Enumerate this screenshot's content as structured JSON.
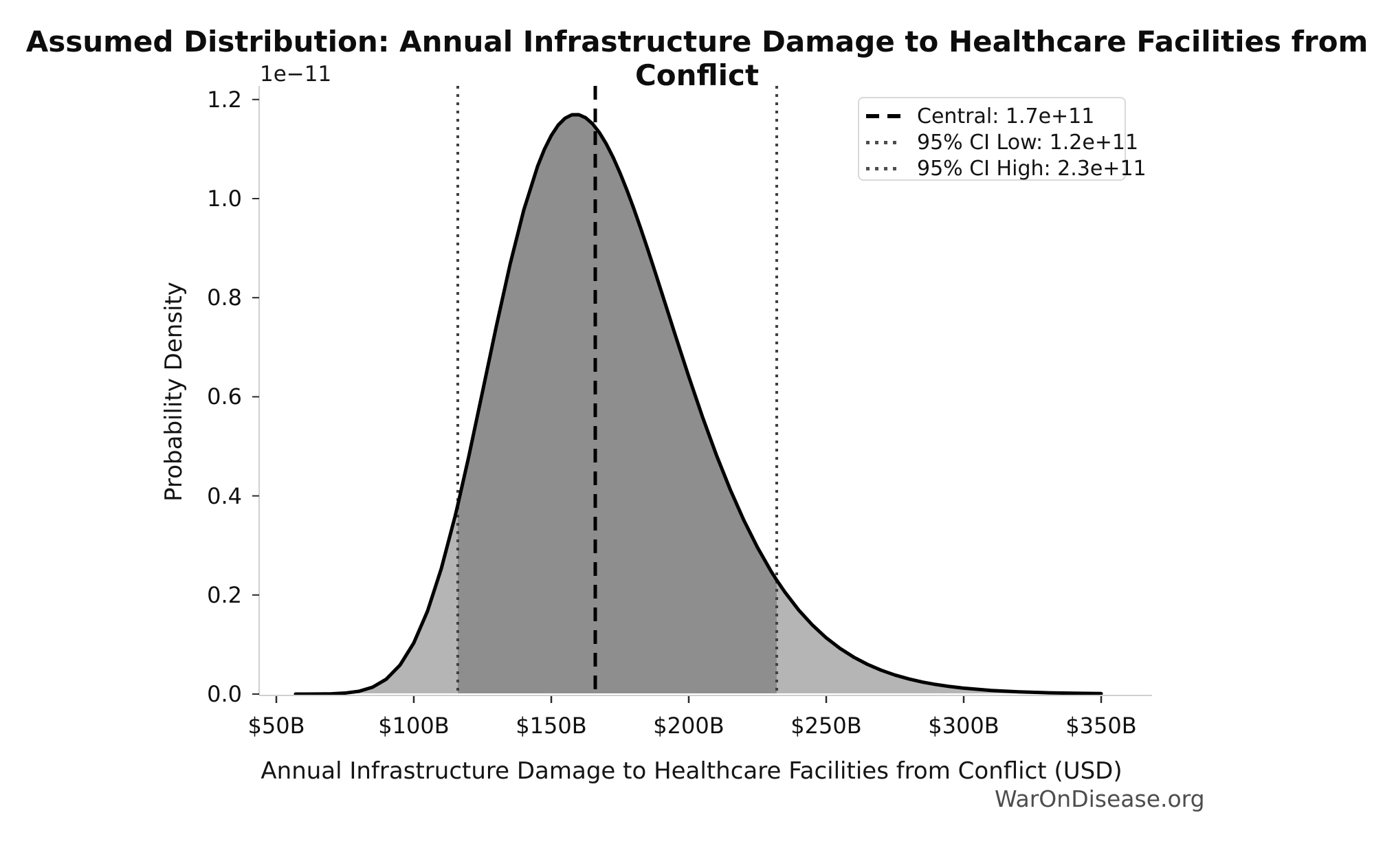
{
  "watermark": "WarOnDisease.org",
  "chart_data": {
    "type": "area",
    "title": "Assumed Distribution: Annual Infrastructure Damage to Healthcare Facilities from Conflict",
    "xlabel": "Annual Infrastructure Damage to Healthcare Facilities from Conflict (USD)",
    "ylabel": "Probability Density",
    "y_offset_label": "1e−11",
    "x_unit": "billions of USD",
    "xlim_B": [
      44,
      368.5
    ],
    "ylim": [
      0,
      1.23
    ],
    "grid": "off",
    "legend_position": "upper right",
    "x_ticks": [
      {
        "value_B": 50,
        "label": "$50B"
      },
      {
        "value_B": 100,
        "label": "$100B"
      },
      {
        "value_B": 150,
        "label": "$150B"
      },
      {
        "value_B": 200,
        "label": "$200B"
      },
      {
        "value_B": 250,
        "label": "$250B"
      },
      {
        "value_B": 300,
        "label": "$300B"
      },
      {
        "value_B": 350,
        "label": "$350B"
      }
    ],
    "y_ticks": [
      {
        "value": 0.0,
        "label": "0.0"
      },
      {
        "value": 0.2,
        "label": "0.2"
      },
      {
        "value": 0.4,
        "label": "0.4"
      },
      {
        "value": 0.6,
        "label": "0.6"
      },
      {
        "value": 0.8,
        "label": "0.8"
      },
      {
        "value": 1.0,
        "label": "1.0"
      },
      {
        "value": 1.2,
        "label": "1.2"
      }
    ],
    "annotations": {
      "central": {
        "value": "1.7e+11",
        "value_B": 166,
        "legend_label": "Central: 1.7e+11",
        "style": "dashed"
      },
      "ci_low": {
        "value": "1.2e+11",
        "value_B": 116,
        "legend_label": "95% CI Low: 1.2e+11",
        "style": "dotted"
      },
      "ci_high": {
        "value": "2.3e+11",
        "value_B": 232,
        "legend_label": "95% CI High: 2.3e+11",
        "style": "dotted"
      }
    },
    "curve_units": "[x in $B, probability density in 1e-11 per USD]",
    "curve": [
      [
        57,
        0.0
      ],
      [
        60,
        0.0
      ],
      [
        65,
        0.0001
      ],
      [
        70,
        0.0006
      ],
      [
        75,
        0.002
      ],
      [
        80,
        0.0056
      ],
      [
        85,
        0.0139
      ],
      [
        90,
        0.0301
      ],
      [
        95,
        0.0586
      ],
      [
        100,
        0.1033
      ],
      [
        105,
        0.1676
      ],
      [
        110,
        0.2532
      ],
      [
        115,
        0.3586
      ],
      [
        116,
        0.3818
      ],
      [
        120,
        0.4797
      ],
      [
        125,
        0.6104
      ],
      [
        130,
        0.742
      ],
      [
        135,
        0.867
      ],
      [
        140,
        0.9769
      ],
      [
        145,
        1.0649
      ],
      [
        147.5,
        1.0996
      ],
      [
        150,
        1.1273
      ],
      [
        152.5,
        1.1483
      ],
      [
        155,
        1.1622
      ],
      [
        157.5,
        1.1692
      ],
      [
        160,
        1.1694
      ],
      [
        162.5,
        1.1632
      ],
      [
        165,
        1.151
      ],
      [
        167.5,
        1.1333
      ],
      [
        170,
        1.1105
      ],
      [
        172.5,
        1.0832
      ],
      [
        175,
        1.0519
      ],
      [
        177.5,
        1.0173
      ],
      [
        180,
        0.98
      ],
      [
        182.5,
        0.9403
      ],
      [
        185,
        0.899
      ],
      [
        187.5,
        0.8565
      ],
      [
        190,
        0.8132
      ],
      [
        195,
        0.7262
      ],
      [
        200,
        0.6409
      ],
      [
        205,
        0.5594
      ],
      [
        210,
        0.4833
      ],
      [
        215,
        0.4139
      ],
      [
        220,
        0.3513
      ],
      [
        225,
        0.2959
      ],
      [
        230,
        0.2473
      ],
      [
        232,
        0.2298
      ],
      [
        235,
        0.2055
      ],
      [
        240,
        0.1695
      ],
      [
        245,
        0.1392
      ],
      [
        250,
        0.1135
      ],
      [
        255,
        0.0922
      ],
      [
        260,
        0.0745
      ],
      [
        265,
        0.06
      ],
      [
        270,
        0.0481
      ],
      [
        275,
        0.0384
      ],
      [
        280,
        0.0306
      ],
      [
        285,
        0.0242
      ],
      [
        290,
        0.0192
      ],
      [
        295,
        0.0152
      ],
      [
        300,
        0.0119
      ],
      [
        310,
        0.0073
      ],
      [
        320,
        0.0045
      ],
      [
        330,
        0.0027
      ],
      [
        340,
        0.0017
      ],
      [
        350,
        0.001
      ]
    ],
    "peak": {
      "x_B": 158.8,
      "density": 1.17
    },
    "colors": {
      "curve": "#000000",
      "fill_ci_region": "#8e8e8e",
      "fill_tails": "#b5b5b5",
      "central_line": "#000000",
      "ci_line": "#404040",
      "spine": "#cfcfcf",
      "tick": "#2a2a2a",
      "text": "#111111",
      "watermark": "#4d4d4d",
      "legend_border": "#d9d9d9"
    }
  }
}
